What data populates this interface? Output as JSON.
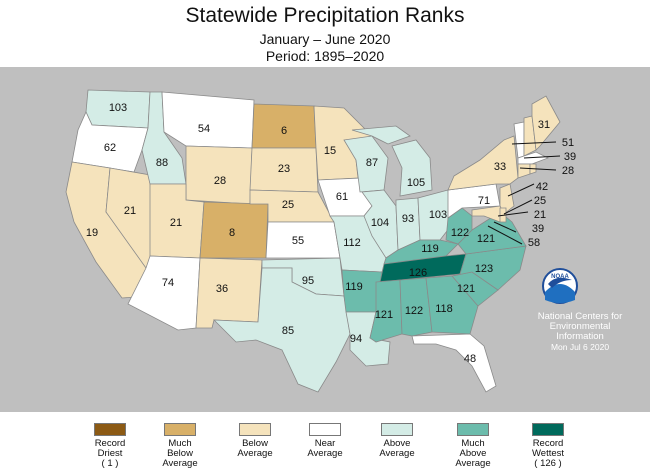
{
  "header": {
    "title": "Statewide Precipitation Ranks",
    "subtitle_1": "January – June 2020",
    "subtitle_2": "Period: 1895–2020"
  },
  "colors": {
    "background_land": "#b9b9b9",
    "ocean": "#c4c4c4",
    "record_driest": "#8c5a14",
    "much_below": "#d8b068",
    "below": "#f5e3bc",
    "near": "#ffffff",
    "above": "#d4ece6",
    "much_above": "#6cbcac",
    "record_wettest": "#006a5c"
  },
  "states": [
    {
      "abbr": "WA",
      "rank": "103",
      "category": "above"
    },
    {
      "abbr": "OR",
      "rank": "62",
      "category": "near"
    },
    {
      "abbr": "CA",
      "rank": "19",
      "category": "below"
    },
    {
      "abbr": "NV",
      "rank": "21",
      "category": "below"
    },
    {
      "abbr": "ID",
      "rank": "88",
      "category": "above"
    },
    {
      "abbr": "MT",
      "rank": "54",
      "category": "near"
    },
    {
      "abbr": "WY",
      "rank": "28",
      "category": "below"
    },
    {
      "abbr": "UT",
      "rank": "21",
      "category": "below"
    },
    {
      "abbr": "AZ",
      "rank": "74",
      "category": "near"
    },
    {
      "abbr": "CO",
      "rank": "8",
      "category": "much_below"
    },
    {
      "abbr": "NM",
      "rank": "36",
      "category": "below"
    },
    {
      "abbr": "ND",
      "rank": "6",
      "category": "much_below"
    },
    {
      "abbr": "SD",
      "rank": "23",
      "category": "below"
    },
    {
      "abbr": "NE",
      "rank": "25",
      "category": "below"
    },
    {
      "abbr": "KS",
      "rank": "55",
      "category": "near"
    },
    {
      "abbr": "OK",
      "rank": "95",
      "category": "above"
    },
    {
      "abbr": "TX",
      "rank": "85",
      "category": "above"
    },
    {
      "abbr": "MN",
      "rank": "15",
      "category": "below"
    },
    {
      "abbr": "IA",
      "rank": "61",
      "category": "near"
    },
    {
      "abbr": "MO",
      "rank": "112",
      "category": "above"
    },
    {
      "abbr": "AR",
      "rank": "119",
      "category": "much_above"
    },
    {
      "abbr": "LA",
      "rank": "94",
      "category": "above"
    },
    {
      "abbr": "WI",
      "rank": "87",
      "category": "above"
    },
    {
      "abbr": "IL",
      "rank": "104",
      "category": "above"
    },
    {
      "abbr": "MI",
      "rank": "105",
      "category": "above"
    },
    {
      "abbr": "IN",
      "rank": "93",
      "category": "above"
    },
    {
      "abbr": "OH",
      "rank": "103",
      "category": "above"
    },
    {
      "abbr": "KY",
      "rank": "119",
      "category": "much_above"
    },
    {
      "abbr": "TN",
      "rank": "126",
      "category": "record_wettest"
    },
    {
      "abbr": "MS",
      "rank": "121",
      "category": "much_above"
    },
    {
      "abbr": "AL",
      "rank": "122",
      "category": "much_above"
    },
    {
      "abbr": "GA",
      "rank": "118",
      "category": "much_above"
    },
    {
      "abbr": "FL",
      "rank": "48",
      "category": "near"
    },
    {
      "abbr": "SC",
      "rank": "121",
      "category": "much_above"
    },
    {
      "abbr": "NC",
      "rank": "123",
      "category": "much_above"
    },
    {
      "abbr": "VA",
      "rank": "121",
      "category": "much_above"
    },
    {
      "abbr": "WV",
      "rank": "122",
      "category": "much_above"
    },
    {
      "abbr": "PA",
      "rank": "71",
      "category": "near"
    },
    {
      "abbr": "NY",
      "rank": "33",
      "category": "below"
    },
    {
      "abbr": "VT",
      "rank": "",
      "category": "near"
    },
    {
      "abbr": "NH",
      "rank": "",
      "category": "below"
    },
    {
      "abbr": "ME",
      "rank": "31",
      "category": "below"
    },
    {
      "abbr": "MA",
      "rank": "51",
      "category": "near"
    },
    {
      "abbr": "RI",
      "rank": "39",
      "category": "below"
    },
    {
      "abbr": "CT",
      "rank": "28",
      "category": "below"
    },
    {
      "abbr": "NJ",
      "rank": "42",
      "category": "below"
    },
    {
      "abbr": "DE",
      "rank": "25",
      "category": "below"
    },
    {
      "abbr": "MD",
      "rank": "21",
      "category": "below"
    },
    {
      "abbr": "DC",
      "rank": "39",
      "category": "below"
    },
    {
      "abbr": "VA_tail",
      "rank": "58",
      "category": "much_above"
    }
  ],
  "noaa": {
    "logo_text": "NOAA",
    "credit_1": "National Centers for",
    "credit_2": "Environmental",
    "credit_3": "Information",
    "date": "Mon Jul  6 2020"
  },
  "legend": [
    {
      "key": "record_driest",
      "line1": "Record",
      "line2": "Driest",
      "line3": "( 1 )"
    },
    {
      "key": "much_below",
      "line1": "Much",
      "line2": "Below",
      "line3": "Average"
    },
    {
      "key": "below",
      "line1": "Below",
      "line2": "Average",
      "line3": ""
    },
    {
      "key": "near",
      "line1": "Near",
      "line2": "Average",
      "line3": ""
    },
    {
      "key": "above",
      "line1": "Above",
      "line2": "Average",
      "line3": ""
    },
    {
      "key": "much_above",
      "line1": "Much",
      "line2": "Above",
      "line3": "Average"
    },
    {
      "key": "record_wettest",
      "line1": "Record",
      "line2": "Wettest",
      "line3": "( 126 )"
    }
  ]
}
